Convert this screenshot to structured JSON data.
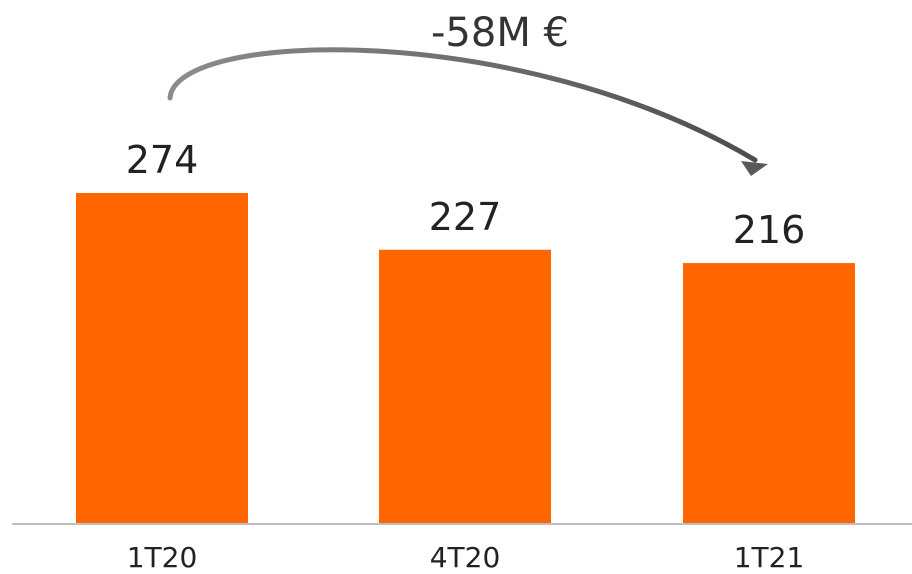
{
  "chart_data": {
    "type": "bar",
    "categories": [
      "1T20",
      "4T20",
      "1T21"
    ],
    "values": [
      274,
      227,
      216
    ],
    "value_labels": [
      "274",
      "227",
      "216"
    ],
    "title": "",
    "xlabel": "",
    "ylabel": "",
    "ylim": [
      0,
      300
    ],
    "grid": false,
    "legend": "none",
    "annotation": {
      "text": "-58M €",
      "from_category": "1T20",
      "to_category": "1T21"
    },
    "colors": {
      "bar": "#ff6600",
      "axis": "#bfbfbf",
      "arrow": "#595959"
    }
  }
}
